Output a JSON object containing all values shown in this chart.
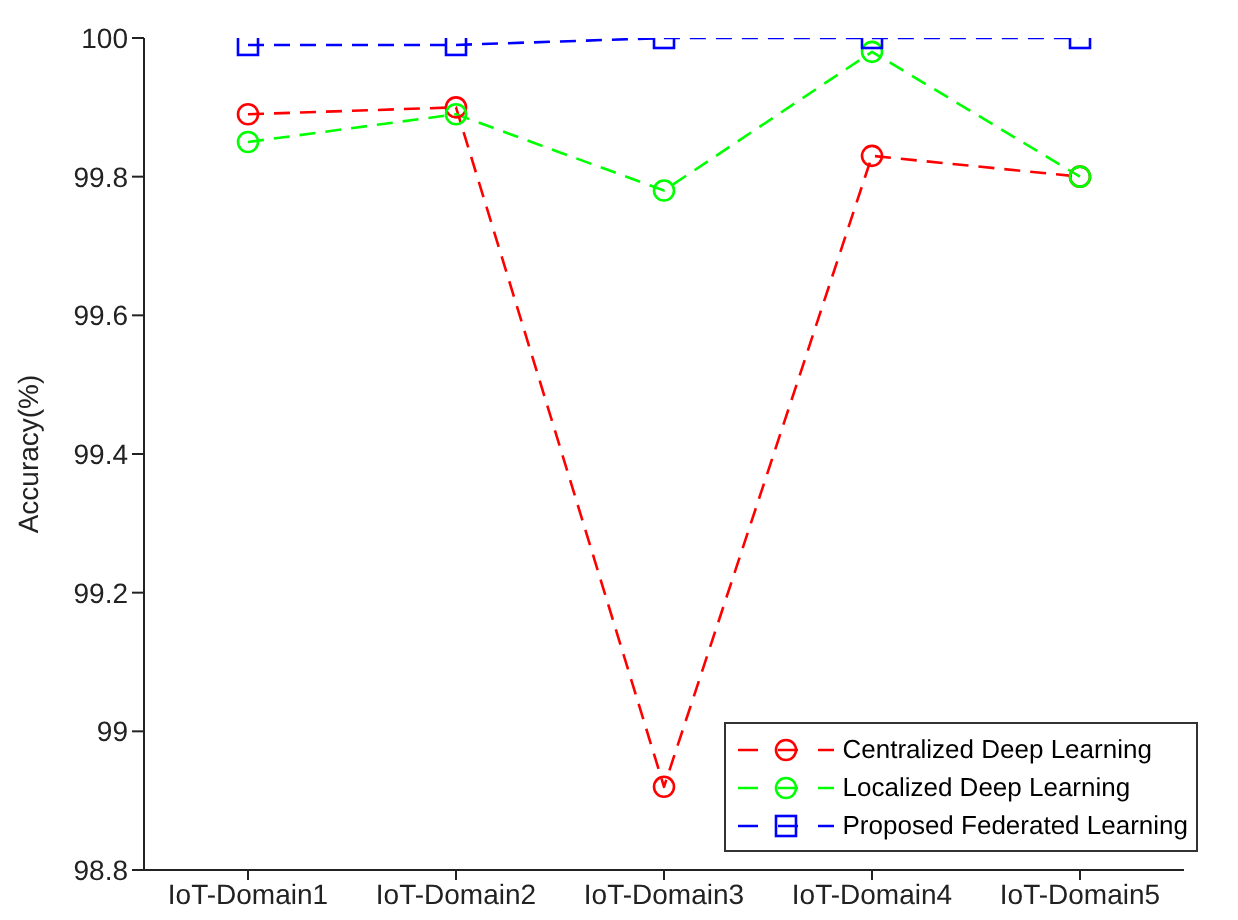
{
  "chart_data": {
    "type": "line",
    "ylabel": "Accuracy(%)",
    "categories": [
      "IoT-Domain1",
      "IoT-Domain2",
      "IoT-Domain3",
      "IoT-Domain4",
      "IoT-Domain5"
    ],
    "series": [
      {
        "name": "Centralized Deep Learning",
        "color": "#ff0000",
        "marker": "circle",
        "values": [
          99.89,
          99.9,
          98.92,
          99.83,
          99.8
        ]
      },
      {
        "name": "Localized Deep Learning",
        "color": "#00ff00",
        "marker": "circle",
        "values": [
          99.85,
          99.89,
          99.78,
          99.98,
          99.8
        ]
      },
      {
        "name": "Proposed Federated Learning",
        "color": "#0000ff",
        "marker": "square",
        "values": [
          99.99,
          99.99,
          100,
          100,
          100
        ]
      }
    ],
    "ylim": [
      98.8,
      100
    ],
    "yticks": [
      98.8,
      99,
      99.2,
      99.4,
      99.6,
      99.8,
      100
    ],
    "grid": false,
    "legend": "bottom right",
    "line_style": "dashed"
  }
}
